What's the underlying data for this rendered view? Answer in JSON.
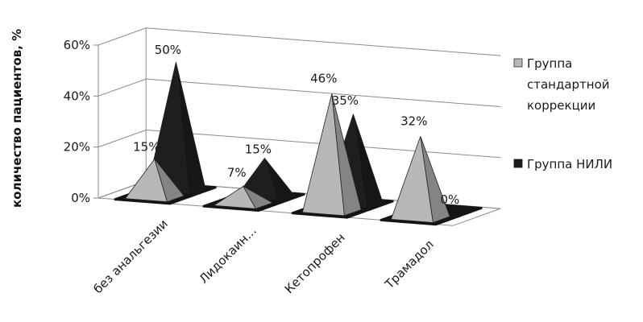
{
  "chart_data": {
    "type": "bar",
    "subtype": "3d-pyramid",
    "title": "",
    "ylabel": "количество пациентов, %",
    "xlabel": "",
    "ylim": [
      0,
      60
    ],
    "yticks": [
      "0%",
      "20%",
      "40%",
      "60%"
    ],
    "grid": true,
    "legend_position": "right",
    "categories": [
      "без анальгезии",
      "Лидокаин...",
      "Кетопрофен",
      "Трамадол"
    ],
    "series": [
      {
        "name": "Группа стандартной коррекции",
        "color": "#b8b8b8",
        "values": [
          15,
          7,
          46,
          32
        ],
        "labels": [
          "15%",
          "7%",
          "46%",
          "32%"
        ]
      },
      {
        "name": "Группа НИЛИ",
        "color": "#1e1e1e",
        "values": [
          50,
          15,
          35,
          0
        ],
        "labels": [
          "50%",
          "15%",
          "35%",
          "0%"
        ]
      }
    ]
  }
}
